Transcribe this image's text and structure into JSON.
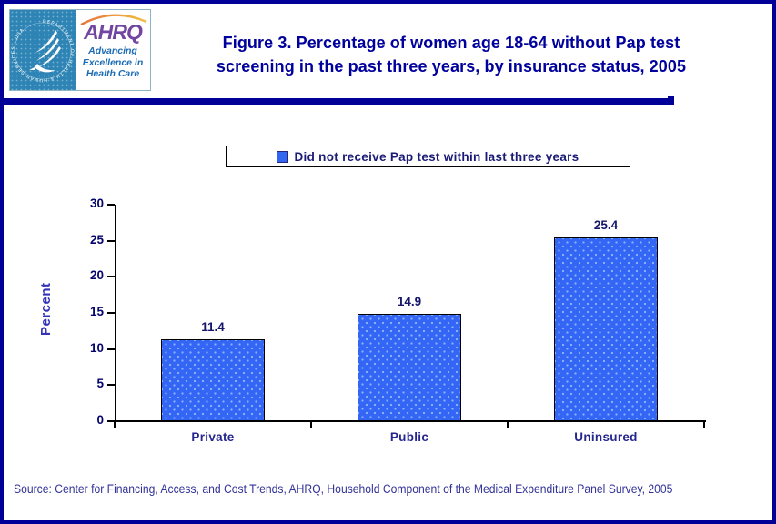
{
  "header": {
    "logo": {
      "acronym": "AHRQ",
      "tagline_lines": [
        "Advancing",
        "Excellence in",
        "Health Care"
      ],
      "seal_text": "DEPARTMENT OF HEALTH & HUMAN SERVICES · USA"
    },
    "title_line1": "Figure 3. Percentage of women age 18-64 without Pap test",
    "title_line2": "screening in the past three years, by insurance status, 2005"
  },
  "legend": {
    "label": "Did not receive Pap test within last three years"
  },
  "chart_data": {
    "type": "bar",
    "title": "Figure 3. Percentage of women age 18-64 without Pap test screening in the past three years, by insurance status, 2005",
    "categories": [
      "Private",
      "Public",
      "Uninsured"
    ],
    "values": [
      11.4,
      14.9,
      25.4
    ],
    "value_labels": [
      "11.4",
      "14.9",
      "25.4"
    ],
    "xlabel": "",
    "ylabel": "Percent",
    "ylim": [
      0,
      30
    ],
    "yticks": [
      0,
      5,
      10,
      15,
      20,
      25,
      30
    ],
    "grid": false,
    "legend_entries": [
      "Did not receive Pap test within last three years"
    ],
    "legend_position": "top-center",
    "bar_color": "#3366F5"
  },
  "footer": {
    "source": "Source: Center for Financing, Access, and Cost Trends, AHRQ, Household Component of the Medical Expenditure Panel Survey, 2005"
  },
  "colors": {
    "page_border": "#000099",
    "title_text": "#00009C",
    "divider": "#000099",
    "bar_fill": "#3366F5",
    "bar_dot": "#8FB0FA",
    "bar_border": "#000000",
    "axis": "#000000",
    "tick_label": "#05056B",
    "category_label": "#26268F",
    "value_label": "#16166B",
    "ylabel_text": "#3333B8",
    "legend_text": "#1B1B77",
    "source_text": "#333399",
    "hhs_tile_blue": "#2E85B5",
    "ahrq_purple": "#7146A0",
    "ahrq_tagline_blue": "#1B6CB5",
    "arc_orange": "#E8703A",
    "arc_yellow": "#F0C040"
  }
}
